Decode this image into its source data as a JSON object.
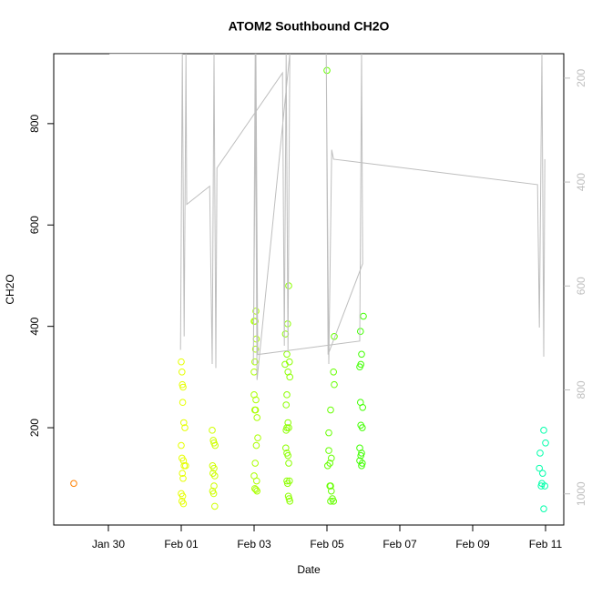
{
  "chart_data": {
    "type": "scatter",
    "title": "ATOM2 Southbound CH2O",
    "x_label": "Date",
    "y_label": "CH2O",
    "xlim": [
      28.5,
      42.5
    ],
    "xticks": [
      {
        "value": 30,
        "label": "Jan 30"
      },
      {
        "value": 32,
        "label": "Feb 01"
      },
      {
        "value": 34,
        "label": "Feb 03"
      },
      {
        "value": 36,
        "label": "Feb 05"
      },
      {
        "value": 38,
        "label": "Feb 07"
      },
      {
        "value": 40,
        "label": "Feb 09"
      },
      {
        "value": 42,
        "label": "Feb 11"
      }
    ],
    "ylim": [
      8,
      938
    ],
    "yticks": [
      200,
      400,
      600,
      800
    ],
    "y2lim": [
      1060,
      153
    ],
    "y2ticks": [
      200,
      400,
      600,
      800,
      1000
    ],
    "y2_color": "#bebebe",
    "series": [
      {
        "color": "#ff8000",
        "x": [
          29.05
        ],
        "values": [
          90
        ]
      },
      {
        "color": "#e6ff00",
        "x": [
          32.0,
          32.02,
          32.03,
          32.05,
          32.04,
          32.07,
          32.1,
          32.0,
          32.02,
          32.06,
          32.08,
          32.12,
          32.03,
          32.05,
          32.0,
          32.04,
          32.02,
          32.06
        ],
        "values": [
          330,
          310,
          285,
          280,
          250,
          210,
          200,
          165,
          140,
          135,
          125,
          125,
          110,
          100,
          70,
          65,
          55,
          50
        ]
      },
      {
        "color": "#d0ff00",
        "x": [
          32.85,
          32.88,
          32.9,
          32.93,
          32.86,
          32.9,
          32.87,
          32.92,
          32.9,
          32.86,
          32.89,
          32.92
        ],
        "values": [
          195,
          175,
          170,
          165,
          125,
          120,
          110,
          105,
          85,
          75,
          70,
          45
        ]
      },
      {
        "color": "#aaff00",
        "x": [
          34.05,
          34.0,
          34.03,
          34.06,
          34.04,
          34.02,
          34.0,
          34.0,
          34.05,
          34.02,
          34.04,
          34.08,
          34.1,
          34.06,
          34.03,
          34.0,
          34.07,
          34.02,
          34.05,
          34.08
        ],
        "values": [
          430,
          410,
          410,
          375,
          355,
          330,
          310,
          265,
          255,
          235,
          235,
          220,
          180,
          165,
          130,
          105,
          95,
          80,
          78,
          75
        ]
      },
      {
        "color": "#8cff00",
        "x": [
          34.95,
          34.92,
          34.86,
          34.9,
          34.97,
          34.85,
          34.93,
          34.98,
          34.9,
          34.88,
          34.93,
          34.9,
          34.88,
          34.95,
          34.87,
          34.9,
          34.93,
          34.95,
          34.9,
          34.97,
          34.92,
          34.94,
          34.96,
          34.98
        ],
        "values": [
          480,
          405,
          385,
          345,
          330,
          325,
          310,
          300,
          265,
          245,
          210,
          200,
          195,
          200,
          160,
          150,
          145,
          130,
          95,
          95,
          90,
          65,
          60,
          55
        ]
      },
      {
        "color": "#66ff00",
        "x": [
          36.0,
          36.2,
          36.18,
          36.2,
          36.1,
          36.05,
          36.05,
          36.12,
          36.08,
          36.02,
          36.1,
          36.08,
          36.12,
          36.15,
          36.1,
          36.18
        ],
        "values": [
          905,
          380,
          310,
          285,
          235,
          190,
          155,
          140,
          130,
          125,
          85,
          85,
          75,
          60,
          55,
          55
        ]
      },
      {
        "color": "#40ff00",
        "x": [
          37.0,
          36.92,
          36.95,
          36.93,
          36.9,
          36.92,
          36.98,
          36.93,
          36.97,
          36.9,
          36.95,
          36.93,
          36.9,
          36.97,
          36.95
        ],
        "values": [
          420,
          390,
          345,
          325,
          320,
          250,
          240,
          205,
          200,
          160,
          150,
          145,
          135,
          130,
          125
        ]
      },
      {
        "color": "#00ffaa",
        "x": [
          41.95,
          42.0,
          41.85,
          41.83,
          41.92,
          41.9,
          41.88,
          41.98,
          41.95
        ],
        "values": [
          195,
          170,
          150,
          120,
          110,
          90,
          85,
          85,
          40
        ]
      },
      {
        "color": "#bebebe",
        "type": "line",
        "axis": "y2",
        "x": [
          30.03,
          32.03,
          31.98,
          32.03,
          32.08,
          32.13,
          32.15,
          32.78,
          32.85,
          32.9,
          32.95,
          32.98,
          34.78,
          34.83,
          34.88,
          34.93,
          34.98,
          34.08,
          34.03,
          33.98,
          34.05,
          34.1,
          36.9,
          36.95,
          36.98,
          36.03,
          35.98,
          36.05,
          36.13,
          36.18,
          41.78,
          41.83,
          41.9,
          41.95,
          41.98
        ],
        "values": [
          153,
          153,
          723,
          153,
          697,
          153,
          443,
          408,
          750,
          153,
          758,
          373,
          190,
          715,
          153,
          723,
          153,
          781,
          153,
          750,
          153,
          732,
          706,
          153,
          557,
          732,
          153,
          750,
          338,
          356,
          405,
          680,
          153,
          736,
          356
        ]
      }
    ]
  }
}
